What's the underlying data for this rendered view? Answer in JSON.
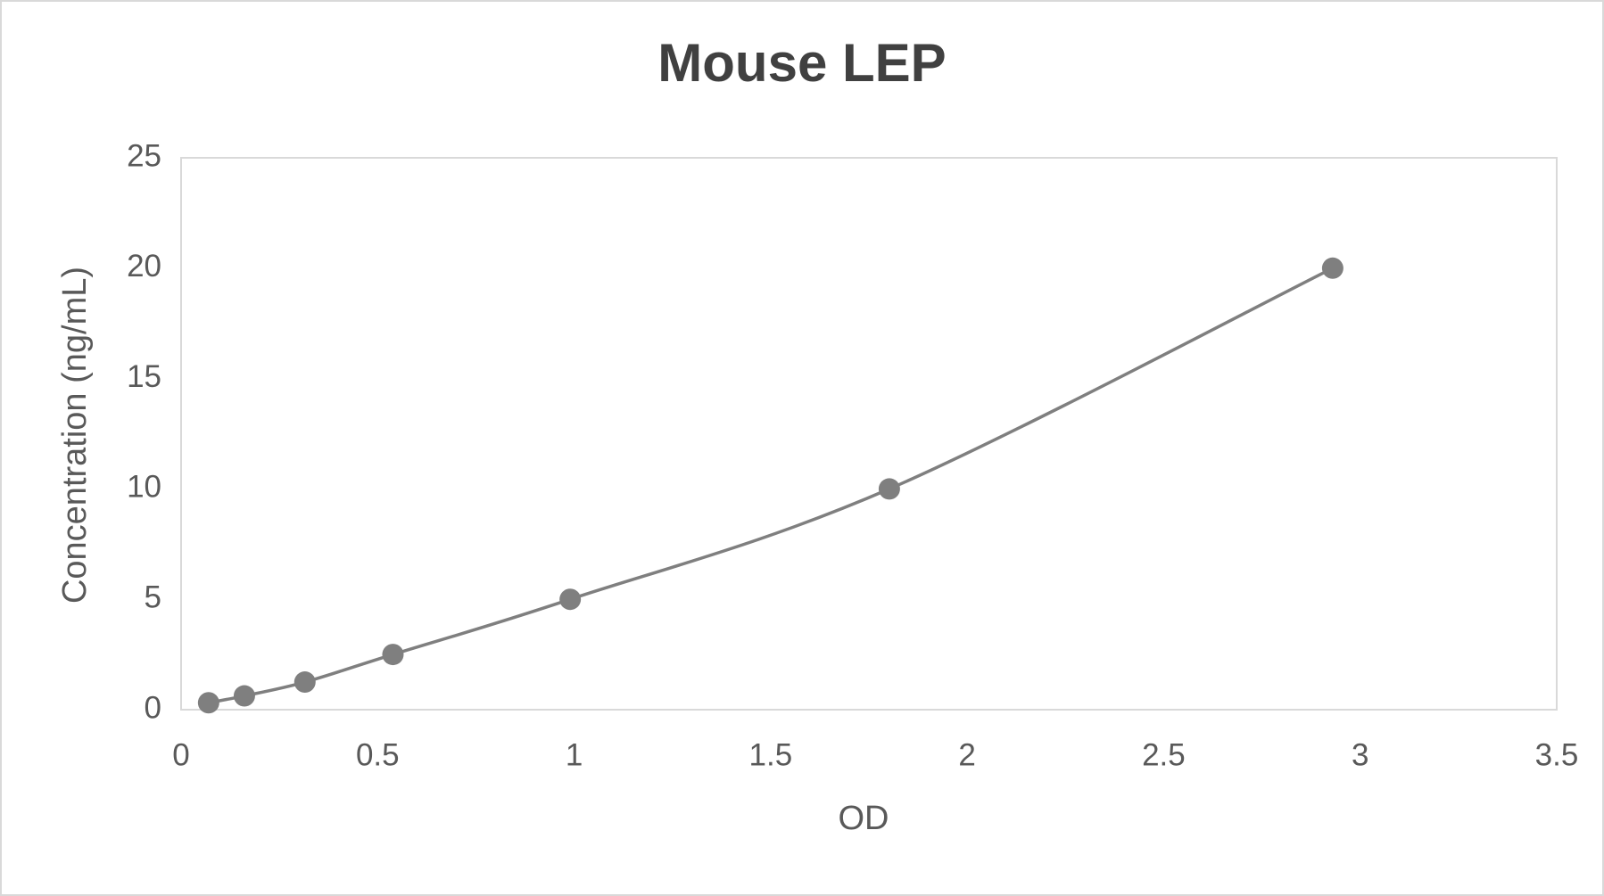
{
  "chart_data": {
    "type": "scatter",
    "title": "Mouse LEP",
    "x_label": "OD",
    "y_label": "Concentration (ng/mL)",
    "x": [
      0.07,
      0.161,
      0.315,
      0.539,
      0.99,
      1.802,
      2.93
    ],
    "values": [
      0.3125,
      0.625,
      1.25,
      2.5,
      5,
      10,
      20
    ],
    "color": "#7f7f7f",
    "line": "smooth",
    "grid": false,
    "xlim": [
      0,
      3.5
    ],
    "xticks": [
      0,
      0.5,
      1,
      1.5,
      2,
      2.5,
      3,
      3.5
    ],
    "ylim": [
      0,
      25
    ],
    "yticks": [
      0,
      5,
      10,
      15,
      20,
      25
    ]
  }
}
